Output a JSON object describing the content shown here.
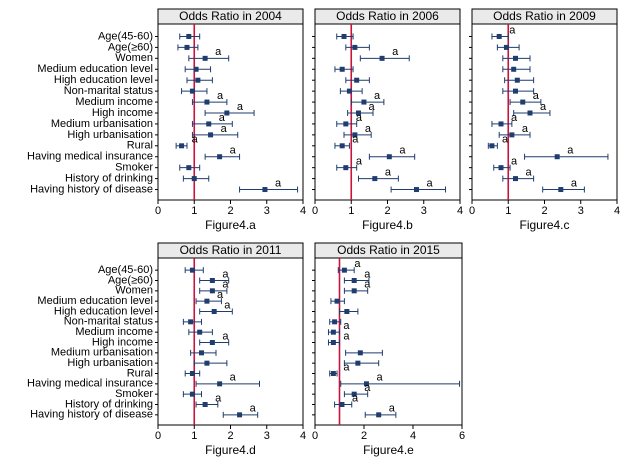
{
  "chart_data": [
    {
      "type": "forest",
      "title": "Odds Ratio in 2004",
      "xlabel": "Figure4.a",
      "categories": [
        "Age(45-60)",
        "Age(≥60)",
        "Women",
        "Medium education level",
        "High education level",
        "Non-marital status",
        "Medium income",
        "High income",
        "Medium urbanisation",
        "High urbanisation",
        "Rural",
        "Having medical insurance",
        "Smoker",
        "History of drinking",
        "Having history of disease"
      ],
      "values": [
        0.85,
        0.8,
        1.3,
        1.05,
        1.1,
        0.95,
        1.35,
        1.9,
        1.4,
        1.45,
        0.65,
        1.7,
        0.85,
        1.0,
        2.95
      ],
      "lower": [
        0.6,
        0.55,
        0.85,
        0.75,
        0.8,
        0.65,
        0.95,
        1.3,
        0.95,
        0.95,
        0.5,
        1.3,
        0.6,
        0.7,
        2.25
      ],
      "upper": [
        1.15,
        1.1,
        1.95,
        1.45,
        1.5,
        1.35,
        1.9,
        2.65,
        2.05,
        2.2,
        0.8,
        2.25,
        1.15,
        1.4,
        3.85
      ],
      "annotations": [
        null,
        null,
        "a",
        null,
        null,
        null,
        "a",
        "a",
        "a",
        "a",
        "a",
        "a",
        null,
        null,
        "a"
      ],
      "xlim": [
        0,
        4
      ],
      "xticks": [
        0,
        1,
        2,
        3,
        4
      ],
      "reference_line": 1,
      "color": "#1f3d6e",
      "reference_color": "#c8143c"
    },
    {
      "type": "forest",
      "title": "Odds Ratio in 2006",
      "xlabel": "Figure4.b",
      "values": [
        0.8,
        1.1,
        1.85,
        0.75,
        1.15,
        0.95,
        1.35,
        1.2,
        0.85,
        1.1,
        0.75,
        2.05,
        0.85,
        1.65,
        2.8
      ],
      "lower": [
        0.6,
        0.85,
        1.25,
        0.55,
        0.85,
        0.7,
        1.0,
        0.9,
        0.6,
        0.8,
        0.55,
        1.5,
        0.6,
        1.2,
        2.1
      ],
      "upper": [
        1.05,
        1.5,
        2.6,
        1.05,
        1.5,
        1.3,
        1.9,
        1.6,
        1.15,
        1.55,
        0.95,
        2.75,
        1.15,
        2.3,
        3.6
      ],
      "annotations": [
        null,
        null,
        "a",
        null,
        null,
        null,
        "a",
        "a",
        "a",
        "a",
        "a",
        "a",
        "a",
        "a",
        "a"
      ],
      "xlim": [
        0,
        4
      ],
      "xticks": [
        0,
        1,
        2,
        3,
        4
      ],
      "reference_line": 1,
      "color": "#1f3d6e",
      "reference_color": "#c8143c"
    },
    {
      "type": "forest",
      "title": "Odds Ratio in 2009",
      "xlabel": "Figure4.c",
      "values": [
        0.75,
        0.95,
        1.2,
        1.15,
        1.25,
        1.2,
        1.4,
        1.6,
        0.8,
        1.1,
        0.55,
        2.35,
        0.8,
        1.2,
        2.45
      ],
      "lower": [
        0.55,
        0.7,
        0.85,
        0.85,
        0.9,
        0.85,
        1.05,
        1.15,
        0.55,
        0.75,
        0.45,
        1.45,
        0.6,
        0.85,
        1.95
      ],
      "upper": [
        1.0,
        1.3,
        1.6,
        1.6,
        1.7,
        1.7,
        1.9,
        2.15,
        1.1,
        1.6,
        0.7,
        3.75,
        1.05,
        1.7,
        3.1
      ],
      "annotations": [
        "a",
        null,
        null,
        null,
        null,
        null,
        "a",
        "a",
        "a",
        "a",
        "a",
        "a",
        "a",
        "a",
        "a"
      ],
      "xlim": [
        0,
        4
      ],
      "xticks": [
        0,
        1,
        2,
        3,
        4
      ],
      "reference_line": 1,
      "color": "#1f3d6e",
      "reference_color": "#c8143c"
    },
    {
      "type": "forest",
      "title": "Odds Ratio in 2011",
      "xlabel": "Figure4.d",
      "categories": [
        "Age(45-60)",
        "Age(≥60)",
        "Women",
        "Medium education level",
        "High education level",
        "Non-marital status",
        "Medium income",
        "High income",
        "Medium urbanisation",
        "High urbanisation",
        "Rural",
        "Having medical insurance",
        "Smoker",
        "History of drinking",
        "Having history of disease"
      ],
      "values": [
        0.95,
        1.5,
        1.5,
        1.35,
        1.55,
        0.9,
        1.15,
        1.5,
        1.2,
        1.35,
        0.95,
        1.7,
        0.95,
        1.3,
        2.25
      ],
      "lower": [
        0.75,
        1.15,
        1.15,
        1.05,
        1.15,
        0.7,
        0.85,
        1.15,
        0.9,
        1.0,
        0.75,
        1.05,
        0.7,
        1.05,
        1.8
      ],
      "upper": [
        1.25,
        1.95,
        1.9,
        1.75,
        2.05,
        1.2,
        1.5,
        1.95,
        1.6,
        1.9,
        1.15,
        2.8,
        1.2,
        1.65,
        2.75
      ],
      "annotations": [
        null,
        "a",
        "a",
        "a",
        "a",
        null,
        null,
        "a",
        null,
        null,
        null,
        "a",
        null,
        "a",
        "a"
      ],
      "xlim": [
        0,
        4
      ],
      "xticks": [
        0,
        1,
        2,
        3,
        4
      ],
      "reference_line": 1,
      "color": "#1f3d6e",
      "reference_color": "#c8143c"
    },
    {
      "type": "forest",
      "title": "Odds Ratio in 2015",
      "xlabel": "Figure4.e",
      "values": [
        1.2,
        1.6,
        1.6,
        0.9,
        1.3,
        0.8,
        0.75,
        0.75,
        1.85,
        1.75,
        0.75,
        2.1,
        1.6,
        1.1,
        2.6
      ],
      "lower": [
        0.95,
        1.2,
        1.2,
        0.65,
        1.0,
        0.6,
        0.55,
        0.55,
        1.25,
        1.2,
        0.6,
        1.05,
        1.2,
        0.8,
        2.05
      ],
      "upper": [
        1.6,
        2.2,
        2.15,
        1.2,
        1.75,
        1.05,
        1.0,
        1.0,
        2.75,
        2.6,
        0.9,
        5.9,
        2.15,
        1.5,
        3.3
      ],
      "annotations": [
        "a",
        "a",
        "a",
        null,
        null,
        null,
        "a",
        "a",
        null,
        null,
        "a",
        "a",
        "a",
        "a",
        "a"
      ],
      "xlim": [
        0,
        6
      ],
      "xticks": [
        0,
        2,
        4,
        6
      ],
      "reference_line": 1,
      "color": "#1f3d6e",
      "reference_color": "#c8143c"
    }
  ]
}
